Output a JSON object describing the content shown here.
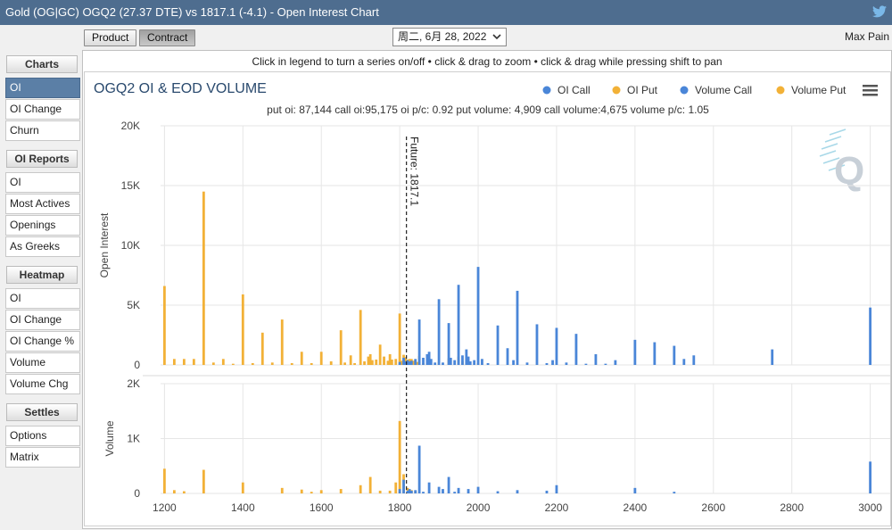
{
  "window": {
    "title": "Gold (OG|GC) OGQ2 (27.37 DTE) vs 1817.1 (-4.1) - Open Interest Chart"
  },
  "toolbar": {
    "product_label": "Product",
    "contract_label": "Contract",
    "date_value": "周二, 6月 28, 2022",
    "max_pain_label": "Max Pain"
  },
  "sidebar": {
    "sections": [
      {
        "header": "Charts",
        "items": [
          "OI",
          "OI Change",
          "Churn"
        ]
      },
      {
        "header": "OI Reports",
        "items": [
          "OI",
          "Most Actives",
          "Openings",
          "As Greeks"
        ]
      },
      {
        "header": "Heatmap",
        "items": [
          "OI",
          "OI Change",
          "OI Change %",
          "Volume",
          "Volume Chg"
        ]
      },
      {
        "header": "Settles",
        "items": [
          "Options",
          "Matrix"
        ]
      }
    ],
    "active": "Charts.OI"
  },
  "colors": {
    "call": "#4a86d8",
    "put": "#f2b137",
    "titlebar": "#4e6d8f",
    "active": "#5b7fa6"
  },
  "chart_data": {
    "type": "bar",
    "hint": "Click in legend to turn a series on/off • click & drag to zoom • click & drag while pressing shift to pan",
    "title": "OGQ2 OI & EOD VOLUME",
    "subtitle": "put oi: 87,144 call oi:95,175 oi p/c: 0.92 put volume: 4,909 call volume:4,675 volume p/c: 1.05",
    "legend": [
      "OI Call",
      "OI Put",
      "Volume Call",
      "Volume Put"
    ],
    "legend_position": "top-right",
    "future_label": "Future: 1817.1",
    "future_value": 1817.1,
    "x_ticks": [
      "1200",
      "1400",
      "1600",
      "1800",
      "2000",
      "2200",
      "2400",
      "2600",
      "2800",
      "3000"
    ],
    "xlim": [
      1190,
      3010
    ],
    "oi_panel": {
      "ylabel": "Open Interest",
      "ylim": [
        0,
        20000
      ],
      "y_ticks": [
        "0",
        "5K",
        "10K",
        "15K",
        "20K"
      ],
      "put": [
        [
          1200,
          6600
        ],
        [
          1225,
          500
        ],
        [
          1250,
          500
        ],
        [
          1275,
          500
        ],
        [
          1300,
          14500
        ],
        [
          1325,
          200
        ],
        [
          1350,
          500
        ],
        [
          1375,
          100
        ],
        [
          1400,
          5900
        ],
        [
          1425,
          150
        ],
        [
          1450,
          2700
        ],
        [
          1475,
          200
        ],
        [
          1500,
          3800
        ],
        [
          1525,
          150
        ],
        [
          1550,
          1100
        ],
        [
          1575,
          150
        ],
        [
          1600,
          1100
        ],
        [
          1625,
          300
        ],
        [
          1650,
          2900
        ],
        [
          1660,
          200
        ],
        [
          1675,
          800
        ],
        [
          1685,
          150
        ],
        [
          1700,
          4600
        ],
        [
          1710,
          300
        ],
        [
          1720,
          700
        ],
        [
          1725,
          900
        ],
        [
          1730,
          400
        ],
        [
          1740,
          450
        ],
        [
          1750,
          1700
        ],
        [
          1760,
          700
        ],
        [
          1770,
          350
        ],
        [
          1775,
          900
        ],
        [
          1780,
          450
        ],
        [
          1790,
          500
        ],
        [
          1800,
          4300
        ],
        [
          1805,
          350
        ],
        [
          1810,
          850
        ],
        [
          1815,
          650
        ],
        [
          1820,
          450
        ],
        [
          1825,
          500
        ],
        [
          1830,
          500
        ],
        [
          1835,
          350
        ],
        [
          1840,
          250
        ],
        [
          1845,
          250
        ],
        [
          1850,
          750
        ],
        [
          1860,
          150
        ],
        [
          1875,
          300
        ],
        [
          1900,
          250
        ],
        [
          1925,
          550
        ],
        [
          1950,
          700
        ],
        [
          1960,
          300
        ],
        [
          1975,
          150
        ],
        [
          2000,
          150
        ]
      ],
      "call": [
        [
          1800,
          250
        ],
        [
          1810,
          600
        ],
        [
          1815,
          300
        ],
        [
          1820,
          400
        ],
        [
          1825,
          300
        ],
        [
          1830,
          350
        ],
        [
          1840,
          500
        ],
        [
          1850,
          3800
        ],
        [
          1860,
          600
        ],
        [
          1870,
          900
        ],
        [
          1875,
          1100
        ],
        [
          1880,
          500
        ],
        [
          1890,
          200
        ],
        [
          1900,
          5500
        ],
        [
          1910,
          200
        ],
        [
          1925,
          3500
        ],
        [
          1930,
          600
        ],
        [
          1940,
          400
        ],
        [
          1950,
          6700
        ],
        [
          1960,
          800
        ],
        [
          1970,
          1300
        ],
        [
          1975,
          700
        ],
        [
          1980,
          300
        ],
        [
          1990,
          400
        ],
        [
          2000,
          8200
        ],
        [
          2010,
          500
        ],
        [
          2025,
          150
        ],
        [
          2050,
          3300
        ],
        [
          2075,
          1400
        ],
        [
          2090,
          400
        ],
        [
          2100,
          6200
        ],
        [
          2125,
          200
        ],
        [
          2150,
          3400
        ],
        [
          2175,
          150
        ],
        [
          2190,
          400
        ],
        [
          2200,
          3100
        ],
        [
          2225,
          200
        ],
        [
          2250,
          2600
        ],
        [
          2275,
          100
        ],
        [
          2300,
          900
        ],
        [
          2325,
          100
        ],
        [
          2350,
          400
        ],
        [
          2400,
          2100
        ],
        [
          2450,
          1900
        ],
        [
          2500,
          1600
        ],
        [
          2525,
          500
        ],
        [
          2550,
          800
        ],
        [
          2750,
          1300
        ],
        [
          3000,
          4800
        ]
      ]
    },
    "volume_panel": {
      "ylabel": "Volume",
      "ylim": [
        0,
        2000
      ],
      "y_ticks": [
        "0",
        "1K",
        "2K"
      ],
      "put": [
        [
          1200,
          450
        ],
        [
          1225,
          60
        ],
        [
          1250,
          40
        ],
        [
          1300,
          430
        ],
        [
          1400,
          200
        ],
        [
          1500,
          100
        ],
        [
          1550,
          70
        ],
        [
          1575,
          30
        ],
        [
          1600,
          60
        ],
        [
          1650,
          80
        ],
        [
          1700,
          150
        ],
        [
          1725,
          300
        ],
        [
          1750,
          50
        ],
        [
          1775,
          50
        ],
        [
          1790,
          200
        ],
        [
          1800,
          1320
        ],
        [
          1810,
          350
        ],
        [
          1820,
          100
        ],
        [
          1830,
          60
        ],
        [
          1840,
          50
        ]
      ],
      "call": [
        [
          1800,
          80
        ],
        [
          1810,
          250
        ],
        [
          1820,
          50
        ],
        [
          1825,
          80
        ],
        [
          1830,
          50
        ],
        [
          1840,
          60
        ],
        [
          1850,
          870
        ],
        [
          1860,
          30
        ],
        [
          1875,
          200
        ],
        [
          1900,
          120
        ],
        [
          1910,
          80
        ],
        [
          1925,
          300
        ],
        [
          1940,
          30
        ],
        [
          1950,
          100
        ],
        [
          1975,
          80
        ],
        [
          2000,
          120
        ],
        [
          2050,
          40
        ],
        [
          2100,
          60
        ],
        [
          2175,
          50
        ],
        [
          2200,
          150
        ],
        [
          2400,
          100
        ],
        [
          2500,
          30
        ],
        [
          3000,
          580
        ]
      ]
    }
  }
}
